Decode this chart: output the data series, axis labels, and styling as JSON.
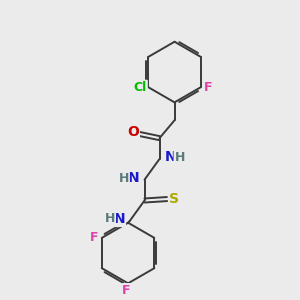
{
  "background_color": "#ebebeb",
  "bond_color": "#3a3a3a",
  "atom_colors": {
    "C": "#3a3a3a",
    "H": "#5a7a7a",
    "N": "#1a1acc",
    "O": "#cc0000",
    "S": "#aaaa00",
    "Cl": "#00bb00",
    "F": "#dd44aa"
  },
  "figsize": [
    3.0,
    3.0
  ],
  "dpi": 100
}
